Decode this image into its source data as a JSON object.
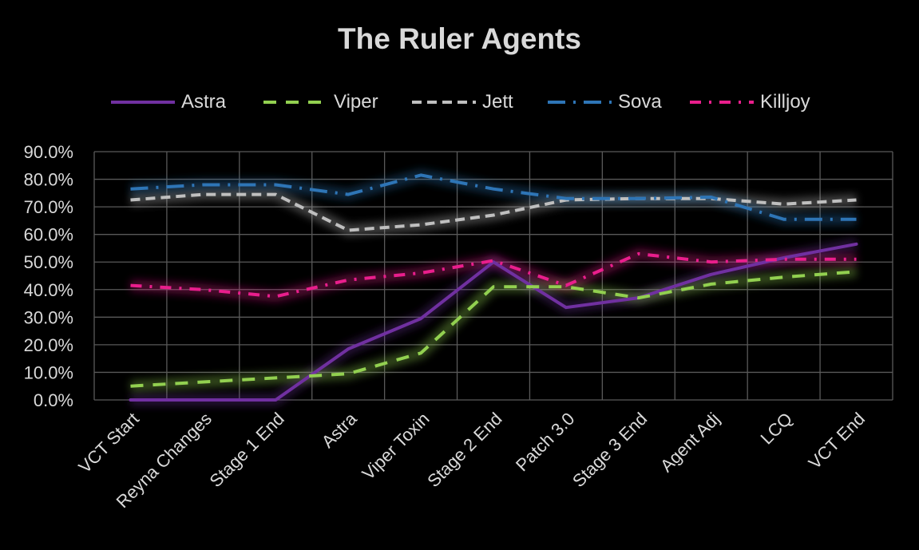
{
  "chart_data": {
    "type": "line",
    "title": "The Ruler Agents",
    "xlabel": "",
    "ylabel": "",
    "ylim": [
      0,
      90
    ],
    "ytick_step": 10,
    "ytick_labels": [
      "0.0%",
      "10.0%",
      "20.0%",
      "30.0%",
      "40.0%",
      "50.0%",
      "60.0%",
      "70.0%",
      "80.0%",
      "90.0%"
    ],
    "grid": true,
    "legend_position": "top",
    "categories": [
      "VCT Start",
      "Reyna Changes",
      "Stage 1 End",
      "Astra",
      "Viper Toxin",
      "Stage 2 End",
      "Patch 3.0",
      "Stage 3 End",
      "Agent Adj",
      "LCQ",
      "VCT End"
    ],
    "series": [
      {
        "name": "Astra",
        "color": "#7030a0",
        "dash": "solid",
        "values": [
          0,
          0,
          0,
          18.5,
          29.5,
          50,
          33.5,
          37,
          45.5,
          51.5,
          56.5
        ]
      },
      {
        "name": "Viper",
        "color": "#92d050",
        "dash": "dash",
        "values": [
          5,
          6.5,
          8,
          9.5,
          17,
          41,
          41,
          37,
          42,
          44.5,
          46.5
        ]
      },
      {
        "name": "Jett",
        "color": "#bfbfbf",
        "dash": "short-dash",
        "values": [
          72.5,
          74.5,
          74.5,
          61.5,
          63.5,
          67,
          72.5,
          73,
          73,
          71,
          72.5
        ]
      },
      {
        "name": "Sova",
        "color": "#2e75b6",
        "dash": "long-dash-dot",
        "values": [
          76.5,
          78,
          78,
          74.5,
          81.5,
          76.5,
          73,
          73,
          73.5,
          65.5,
          65.5
        ]
      },
      {
        "name": "Killjoy",
        "color": "#e91e8c",
        "dash": "dash-dot",
        "values": [
          41.5,
          40,
          37.5,
          43.5,
          46,
          50.5,
          41.5,
          53,
          50,
          51,
          51
        ]
      }
    ]
  }
}
